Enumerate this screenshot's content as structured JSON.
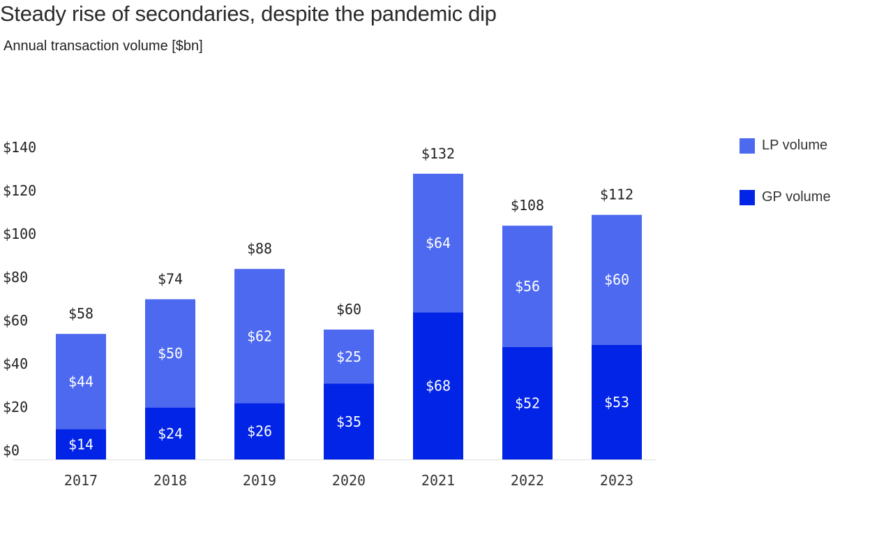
{
  "header": {
    "title": "Steady rise of secondaries, despite the pandemic dip",
    "subtitle": "Annual transaction volume [$bn]"
  },
  "colors": {
    "lp": "#4D69F0",
    "gp": "#0224E6",
    "axis": "#dddddd",
    "text": "#222222"
  },
  "chart_data": {
    "type": "bar",
    "stacked": true,
    "categories": [
      "2017",
      "2018",
      "2019",
      "2020",
      "2021",
      "2022",
      "2023"
    ],
    "series": [
      {
        "name": "GP volume",
        "values": [
          14,
          24,
          26,
          35,
          68,
          52,
          53
        ],
        "labels": [
          "$14",
          "$24",
          "$26",
          "$35",
          "$68",
          "$52",
          "$53"
        ]
      },
      {
        "name": "LP volume",
        "values": [
          44,
          50,
          62,
          25,
          64,
          56,
          60
        ],
        "labels": [
          "$44",
          "$50",
          "$62",
          "$25",
          "$64",
          "$56",
          "$60"
        ]
      }
    ],
    "totals": [
      58,
      74,
      88,
      60,
      132,
      108,
      112
    ],
    "total_labels": [
      "$58",
      "$74",
      "$88",
      "$60",
      "$132",
      "$108",
      "$112"
    ],
    "ylim": [
      0,
      140
    ],
    "yticks": [
      0,
      20,
      40,
      60,
      80,
      100,
      120,
      140
    ],
    "ytick_labels": [
      "$0",
      "$20",
      "$40",
      "$60",
      "$80",
      "$100",
      "$120",
      "$140"
    ],
    "legend": {
      "placement": "right",
      "items": [
        "LP volume",
        "GP volume"
      ]
    },
    "grid": false
  }
}
